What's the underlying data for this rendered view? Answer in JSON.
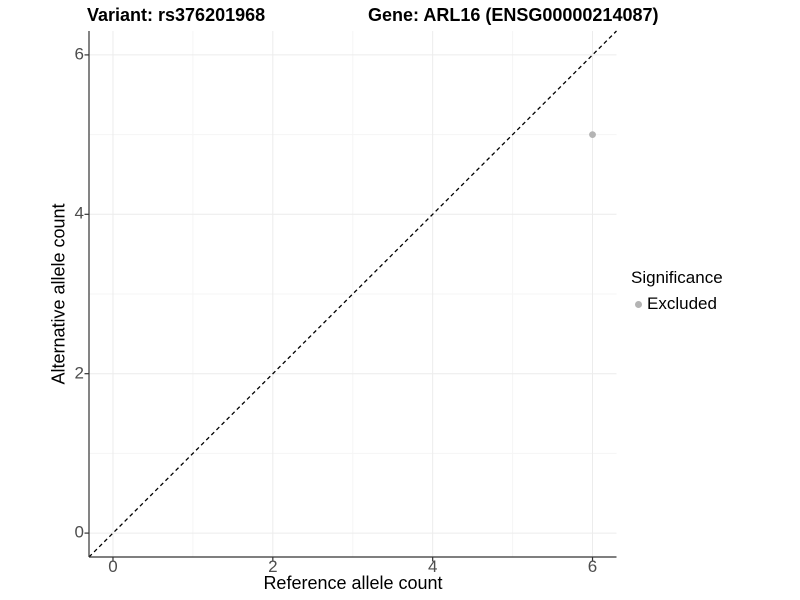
{
  "chart_data": {
    "type": "scatter",
    "title_left": "Variant: rs376201968",
    "title_right": "Gene: ARL16 (ENSG00000214087)",
    "xlabel": "Reference allele count",
    "ylabel": "Alternative allele count",
    "xlim": [
      -0.3,
      6.3
    ],
    "ylim": [
      -0.3,
      6.3
    ],
    "x_ticks": [
      0,
      2,
      4,
      6
    ],
    "x_tick_labels": [
      "0",
      "2",
      "4",
      "6"
    ],
    "y_ticks": [
      0,
      2,
      4,
      6
    ],
    "y_tick_labels": [
      "0",
      "2",
      "4",
      "6"
    ],
    "x_minor_gridlines": [
      1,
      3,
      5
    ],
    "y_minor_gridlines": [
      1,
      3,
      5
    ],
    "grid": true,
    "points": [
      {
        "x": 6,
        "y": 5,
        "series": "Excluded"
      }
    ],
    "abline": {
      "slope": 1,
      "intercept": 0,
      "linetype": "dashed"
    },
    "legend": {
      "title": "Significance",
      "position": "right",
      "items": [
        {
          "label": "Excluded",
          "color": "#b4b4b4"
        }
      ]
    },
    "colors": {
      "point": "#b4b4b4",
      "grid_major": "#ececec",
      "grid_minor": "#f5f5f5",
      "axis_line": "#333333",
      "tick_label": "#4d4d4d",
      "title": "#000000",
      "diagonal_line": "#000000",
      "background": "#ffffff"
    }
  }
}
